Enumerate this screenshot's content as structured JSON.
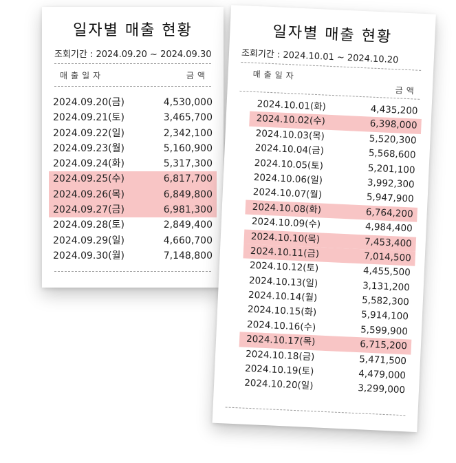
{
  "receipts": [
    {
      "title": "일자별 매출 현황",
      "period": "조회기간 : 2024.09.20 ~ 2024.09.30",
      "col_date": "매출일자",
      "col_amount": "금액",
      "rows": [
        {
          "date": "2024.09.20(금)",
          "amount": "4,530,000",
          "highlight": false
        },
        {
          "date": "2024.09.21(토)",
          "amount": "3,465,700",
          "highlight": false
        },
        {
          "date": "2024.09.22(일)",
          "amount": "2,342,100",
          "highlight": false
        },
        {
          "date": "2024.09.23(월)",
          "amount": "5,160,900",
          "highlight": false
        },
        {
          "date": "2024.09.24(화)",
          "amount": "5,317,300",
          "highlight": false
        },
        {
          "date": "2024.09.25(수)",
          "amount": "6,817,700",
          "highlight": true
        },
        {
          "date": "2024.09.26(목)",
          "amount": "6,849,800",
          "highlight": true
        },
        {
          "date": "2024.09.27(금)",
          "amount": "6,981,300",
          "highlight": true
        },
        {
          "date": "2024.09.28(토)",
          "amount": "2,849,400",
          "highlight": false
        },
        {
          "date": "2024.09.29(일)",
          "amount": "4,660,700",
          "highlight": false
        },
        {
          "date": "2024.09.30(월)",
          "amount": "7,148,800",
          "highlight": false
        }
      ]
    },
    {
      "title": "일자별 매출 현황",
      "period": "조회기간 : 2024.10.01 ~ 2024.10.20",
      "col_date": "매출일자",
      "col_amount": "금액",
      "rows": [
        {
          "date": "2024.10.01(화)",
          "amount": "4,435,200",
          "highlight": false
        },
        {
          "date": "2024.10.02(수)",
          "amount": "6,398,000",
          "highlight": true
        },
        {
          "date": "2024.10.03(목)",
          "amount": "5,520,300",
          "highlight": false
        },
        {
          "date": "2024.10.04(금)",
          "amount": "5,568,600",
          "highlight": false
        },
        {
          "date": "2024.10.05(토)",
          "amount": "5,201,100",
          "highlight": false
        },
        {
          "date": "2024.10.06(일)",
          "amount": "3,992,300",
          "highlight": false
        },
        {
          "date": "2024.10.07(월)",
          "amount": "5,947,900",
          "highlight": false
        },
        {
          "date": "2024.10.08(화)",
          "amount": "6,764,200",
          "highlight": true
        },
        {
          "date": "2024.10.09(수)",
          "amount": "4,984,400",
          "highlight": false
        },
        {
          "date": "2024.10.10(목)",
          "amount": "7,453,400",
          "highlight": true
        },
        {
          "date": "2024.10.11(금)",
          "amount": "7,014,500",
          "highlight": true
        },
        {
          "date": "2024.10.12(토)",
          "amount": "4,455,500",
          "highlight": false
        },
        {
          "date": "2024.10.13(일)",
          "amount": "3,131,200",
          "highlight": false
        },
        {
          "date": "2024.10.14(월)",
          "amount": "5,582,300",
          "highlight": false
        },
        {
          "date": "2024.10.15(화)",
          "amount": "5,914,100",
          "highlight": false
        },
        {
          "date": "2024.10.16(수)",
          "amount": "5,599,900",
          "highlight": false
        },
        {
          "date": "2024.10.17(목)",
          "amount": "6,715,200",
          "highlight": true
        },
        {
          "date": "2024.10.18(금)",
          "amount": "5,471,500",
          "highlight": false
        },
        {
          "date": "2024.10.19(토)",
          "amount": "4,479,000",
          "highlight": false
        },
        {
          "date": "2024.10.20(일)",
          "amount": "3,299,000",
          "highlight": false
        }
      ]
    }
  ]
}
